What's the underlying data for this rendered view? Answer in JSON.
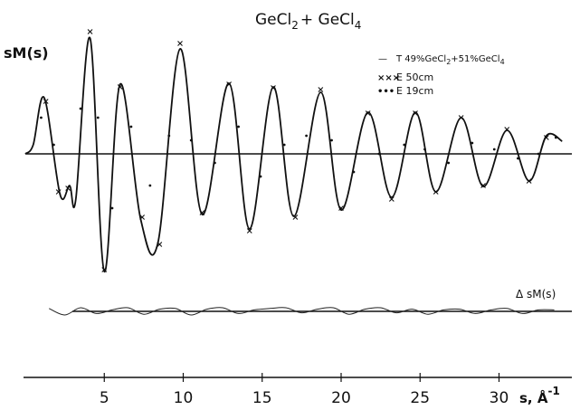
{
  "chart_data": {
    "type": "line",
    "title": "GeCl2 + GeCl4",
    "title_parts": {
      "a": "GeCl",
      "a_sub": "2",
      "plus": "+ ",
      "b": "GeCl",
      "b_sub": "4"
    },
    "ylabel": "sM(s)",
    "xlabel": "s, Å-1",
    "xlabel_parts": {
      "s": "s, ",
      "A": "Å",
      "exp": "-1"
    },
    "xlim": [
      0,
      34
    ],
    "xticks": [
      "5",
      "10",
      "15",
      "20",
      "25",
      "30"
    ],
    "xtick_values": [
      5,
      10,
      15,
      20,
      25,
      30
    ],
    "legend_position": "top-right",
    "legend": [
      {
        "marker": "—",
        "parts": [
          "T 49%GeCl",
          "2",
          "+51%GeCl",
          "4"
        ]
      },
      {
        "marker": "×××",
        "parts": [
          "E 50cm"
        ]
      },
      {
        "marker": "•••",
        "parts": [
          "E 19cm"
        ]
      }
    ],
    "series": [
      {
        "name": "T 49%GeCl2+51%GeCl4",
        "style": "solid line",
        "x": [
          0.0,
          0.5,
          1.2,
          2.2,
          2.8,
          3.2,
          4.1,
          5.0,
          6.0,
          7.3,
          8.4,
          9.8,
          11.2,
          12.9,
          14.2,
          15.7,
          17.0,
          18.7,
          20.0,
          21.7,
          23.2,
          24.7,
          26.0,
          27.6,
          29.0,
          30.5,
          31.9,
          33.0,
          34.0
        ],
        "y": [
          0.0,
          0.1,
          0.62,
          -0.45,
          -0.35,
          -0.5,
          1.28,
          -1.3,
          0.77,
          -0.72,
          -0.98,
          1.16,
          -0.67,
          0.78,
          -0.83,
          0.74,
          -0.69,
          0.68,
          -0.62,
          0.46,
          -0.48,
          0.46,
          -0.42,
          0.4,
          -0.36,
          0.26,
          -0.3,
          0.2,
          0.14
        ]
      },
      {
        "name": "E 50cm",
        "style": "crosses",
        "x": [
          1.3,
          2.1,
          2.7,
          4.1,
          5.0,
          6.0,
          7.4,
          8.5,
          9.8,
          11.2,
          12.9,
          14.2,
          15.7,
          17.1,
          18.7,
          20.0,
          21.7,
          23.2,
          24.7,
          26.0,
          27.6,
          29.0,
          30.5,
          31.9,
          33.0
        ],
        "y": [
          0.58,
          -0.42,
          -0.38,
          1.35,
          -1.28,
          0.74,
          -0.7,
          -1.0,
          1.22,
          -0.65,
          0.77,
          -0.85,
          0.73,
          -0.7,
          0.71,
          -0.6,
          0.45,
          -0.5,
          0.45,
          -0.42,
          0.4,
          -0.35,
          0.27,
          -0.3,
          0.18
        ]
      },
      {
        "name": "E 19cm",
        "style": "dots",
        "x": [
          1.0,
          1.8,
          3.5,
          4.6,
          5.5,
          6.7,
          7.9,
          9.1,
          10.5,
          12.0,
          13.5,
          14.9,
          16.4,
          17.8,
          19.4,
          20.8,
          22.4,
          24.0,
          25.3,
          26.8,
          28.3,
          29.7,
          31.2,
          32.5,
          33.6
        ],
        "y": [
          0.4,
          0.1,
          0.5,
          0.4,
          -0.6,
          0.3,
          -0.35,
          0.2,
          0.15,
          -0.1,
          0.3,
          -0.25,
          0.1,
          0.2,
          0.15,
          -0.2,
          0.0,
          0.1,
          0.05,
          -0.1,
          0.12,
          0.05,
          -0.05,
          0.0,
          0.18
        ]
      }
    ],
    "difference_curve": {
      "label": "Δ sM(s)",
      "x": [
        1.5,
        2.5,
        3.5,
        4.5,
        5.5,
        6.5,
        7.5,
        8.5,
        9.5,
        10.5,
        11.5,
        12.5,
        13.5,
        14.5,
        15.5,
        16.5,
        17.5,
        18.5,
        19.5,
        20.5,
        21.5,
        22.5,
        23.5,
        24.5,
        25.5,
        26.5,
        27.5,
        28.5,
        29.5,
        30.5,
        31.5,
        32.5,
        33.5
      ],
      "y": [
        0.04,
        -0.05,
        0.05,
        -0.03,
        0.02,
        0.05,
        -0.04,
        0.03,
        0.04,
        -0.05,
        0.03,
        0.05,
        -0.03,
        0.02,
        0.04,
        0.05,
        -0.02,
        0.03,
        0.05,
        -0.04,
        0.03,
        0.05,
        -0.02,
        0.03,
        -0.04,
        0.02,
        0.03,
        -0.03,
        0.02,
        0.04,
        -0.03,
        0.02,
        0.02
      ]
    }
  }
}
